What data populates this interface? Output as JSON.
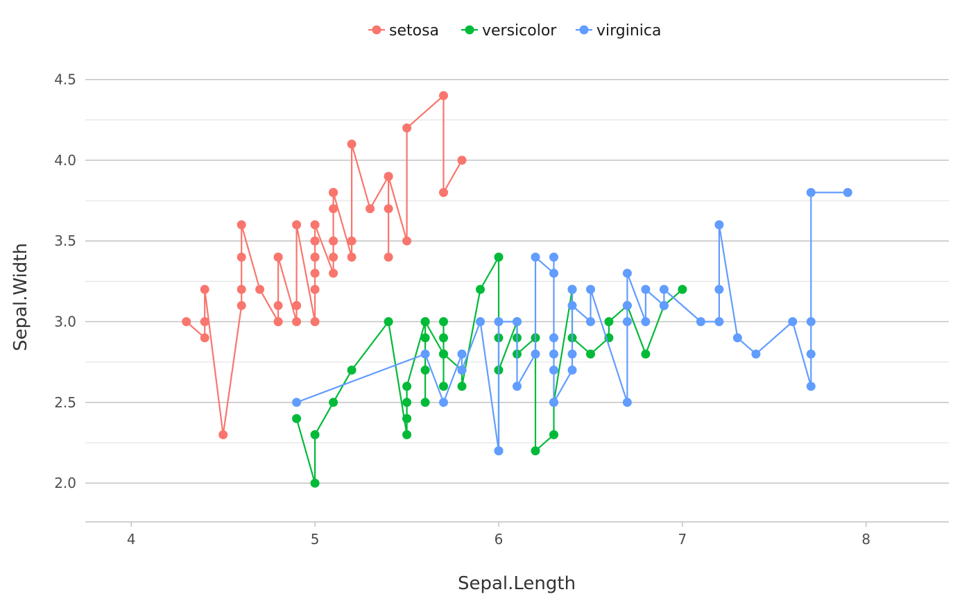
{
  "chart_data": {
    "type": "line",
    "xlabel": "Sepal.Length",
    "ylabel": "Sepal.Width",
    "xlim": [
      3.75,
      8.45
    ],
    "ylim": [
      1.76,
      4.64
    ],
    "x_ticks": [
      4,
      5,
      6,
      7,
      8
    ],
    "x_tick_labels": [
      "4",
      "5",
      "6",
      "7",
      "8"
    ],
    "y_ticks": [
      2.0,
      2.5,
      3.0,
      3.5,
      4.0,
      4.5
    ],
    "y_tick_labels": [
      "2.0",
      "2.5",
      "3.0",
      "3.5",
      "4.0",
      "4.5"
    ],
    "grid": true,
    "legend_position": "top",
    "series": [
      {
        "name": "setosa",
        "color": "#F8766D",
        "points": [
          [
            4.3,
            3.0
          ],
          [
            4.4,
            2.9
          ],
          [
            4.4,
            3.0
          ],
          [
            4.4,
            3.2
          ],
          [
            4.5,
            2.3
          ],
          [
            4.6,
            3.1
          ],
          [
            4.6,
            3.2
          ],
          [
            4.6,
            3.4
          ],
          [
            4.6,
            3.6
          ],
          [
            4.7,
            3.2
          ],
          [
            4.8,
            3.0
          ],
          [
            4.8,
            3.0
          ],
          [
            4.8,
            3.1
          ],
          [
            4.8,
            3.4
          ],
          [
            4.8,
            3.4
          ],
          [
            4.9,
            3.0
          ],
          [
            4.9,
            3.1
          ],
          [
            4.9,
            3.1
          ],
          [
            4.9,
            3.6
          ],
          [
            5.0,
            3.0
          ],
          [
            5.0,
            3.2
          ],
          [
            5.0,
            3.3
          ],
          [
            5.0,
            3.4
          ],
          [
            5.0,
            3.4
          ],
          [
            5.0,
            3.5
          ],
          [
            5.0,
            3.5
          ],
          [
            5.0,
            3.6
          ],
          [
            5.1,
            3.3
          ],
          [
            5.1,
            3.4
          ],
          [
            5.1,
            3.5
          ],
          [
            5.1,
            3.5
          ],
          [
            5.1,
            3.7
          ],
          [
            5.1,
            3.8
          ],
          [
            5.1,
            3.8
          ],
          [
            5.1,
            3.8
          ],
          [
            5.2,
            3.4
          ],
          [
            5.2,
            3.5
          ],
          [
            5.2,
            4.1
          ],
          [
            5.3,
            3.7
          ],
          [
            5.4,
            3.9
          ],
          [
            5.4,
            3.4
          ],
          [
            5.4,
            3.7
          ],
          [
            5.4,
            3.9
          ],
          [
            5.5,
            3.5
          ],
          [
            5.5,
            4.2
          ],
          [
            5.7,
            4.4
          ],
          [
            5.7,
            3.8
          ],
          [
            5.8,
            4.0
          ]
        ]
      },
      {
        "name": "versicolor",
        "color": "#00BA38",
        "points": [
          [
            4.9,
            2.4
          ],
          [
            5.0,
            2.0
          ],
          [
            5.0,
            2.3
          ],
          [
            5.1,
            2.5
          ],
          [
            5.2,
            2.7
          ],
          [
            5.4,
            3.0
          ],
          [
            5.5,
            2.3
          ],
          [
            5.5,
            2.4
          ],
          [
            5.5,
            2.4
          ],
          [
            5.5,
            2.5
          ],
          [
            5.5,
            2.6
          ],
          [
            5.6,
            3.0
          ],
          [
            5.6,
            2.9
          ],
          [
            5.6,
            2.5
          ],
          [
            5.6,
            2.7
          ],
          [
            5.6,
            3.0
          ],
          [
            5.7,
            2.8
          ],
          [
            5.7,
            2.6
          ],
          [
            5.7,
            3.0
          ],
          [
            5.7,
            2.9
          ],
          [
            5.7,
            2.8
          ],
          [
            5.8,
            2.7
          ],
          [
            5.8,
            2.6
          ],
          [
            5.9,
            3.2
          ],
          [
            6.0,
            3.4
          ],
          [
            6.0,
            2.2
          ],
          [
            6.0,
            2.9
          ],
          [
            6.0,
            2.7
          ],
          [
            6.1,
            3.0
          ],
          [
            6.1,
            2.9
          ],
          [
            6.1,
            2.8
          ],
          [
            6.2,
            2.9
          ],
          [
            6.2,
            2.2
          ],
          [
            6.3,
            2.3
          ],
          [
            6.3,
            2.5
          ],
          [
            6.4,
            3.2
          ],
          [
            6.4,
            2.9
          ],
          [
            6.5,
            2.8
          ],
          [
            6.6,
            2.9
          ],
          [
            6.6,
            3.0
          ],
          [
            6.7,
            3.1
          ],
          [
            6.8,
            2.8
          ],
          [
            6.9,
            3.1
          ],
          [
            7.0,
            3.2
          ]
        ]
      },
      {
        "name": "virginica",
        "color": "#619CFF",
        "points": [
          [
            4.9,
            2.5
          ],
          [
            5.6,
            2.8
          ],
          [
            5.7,
            2.5
          ],
          [
            5.8,
            2.8
          ],
          [
            5.8,
            2.7
          ],
          [
            5.9,
            3.0
          ],
          [
            6.0,
            2.2
          ],
          [
            6.0,
            3.0
          ],
          [
            6.1,
            3.0
          ],
          [
            6.1,
            2.6
          ],
          [
            6.2,
            2.8
          ],
          [
            6.2,
            3.4
          ],
          [
            6.3,
            3.3
          ],
          [
            6.3,
            3.4
          ],
          [
            6.3,
            2.9
          ],
          [
            6.3,
            2.8
          ],
          [
            6.3,
            2.7
          ],
          [
            6.3,
            2.5
          ],
          [
            6.4,
            2.7
          ],
          [
            6.4,
            2.8
          ],
          [
            6.4,
            3.2
          ],
          [
            6.4,
            3.1
          ],
          [
            6.5,
            3.0
          ],
          [
            6.5,
            3.2
          ],
          [
            6.7,
            2.5
          ],
          [
            6.7,
            3.0
          ],
          [
            6.7,
            3.1
          ],
          [
            6.7,
            3.3
          ],
          [
            6.8,
            3.0
          ],
          [
            6.8,
            3.2
          ],
          [
            6.9,
            3.1
          ],
          [
            6.9,
            3.2
          ],
          [
            7.1,
            3.0
          ],
          [
            7.2,
            3.0
          ],
          [
            7.2,
            3.2
          ],
          [
            7.2,
            3.6
          ],
          [
            7.3,
            2.9
          ],
          [
            7.4,
            2.8
          ],
          [
            7.6,
            3.0
          ],
          [
            7.7,
            2.6
          ],
          [
            7.7,
            2.8
          ],
          [
            7.7,
            3.0
          ],
          [
            7.7,
            3.8
          ],
          [
            7.9,
            3.8
          ]
        ]
      }
    ]
  }
}
